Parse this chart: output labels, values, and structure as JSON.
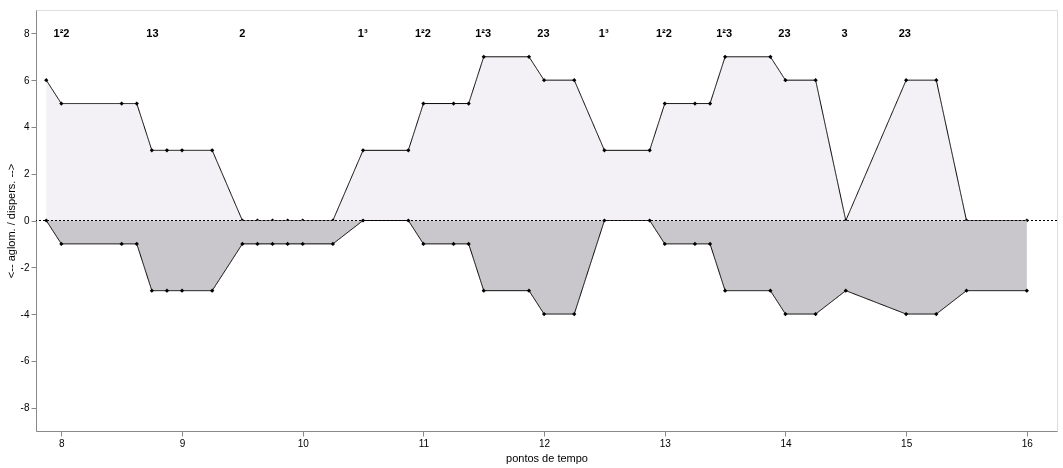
{
  "chart_data": {
    "type": "area",
    "xlabel": "pontos de tempo",
    "ylabel": "<-- aglom. / dispers. -->",
    "x": [
      7.875,
      8,
      8.5,
      8.625,
      8.75,
      8.875,
      9,
      9.25,
      9.5,
      9.625,
      9.75,
      9.875,
      10,
      10.25,
      10.5,
      10.875,
      11,
      11.25,
      11.375,
      11.5,
      11.875,
      12,
      12.25,
      12.5,
      12.875,
      13,
      13.25,
      13.375,
      13.5,
      13.875,
      14,
      14.25,
      14.5,
      15,
      15.25,
      15.5,
      16
    ],
    "series": [
      {
        "color": "#f3f1f5",
        "values": [
          6,
          5,
          5,
          5,
          3,
          3,
          3,
          3,
          0,
          0,
          0,
          0,
          0,
          0,
          3,
          3,
          5,
          5,
          5,
          7,
          7,
          6,
          6,
          3,
          3,
          5,
          5,
          5,
          7,
          7,
          6,
          6,
          0,
          6,
          6,
          0,
          0
        ]
      },
      {
        "color": "#c9c7cb",
        "values": [
          0,
          -1,
          -1,
          -1,
          -3,
          -3,
          -3,
          -3,
          -1,
          -1,
          -1,
          -1,
          -1,
          -1,
          0,
          0,
          -1,
          -1,
          -1,
          -3,
          -3,
          -4,
          -4,
          0,
          0,
          -1,
          -1,
          -1,
          -3,
          -3,
          -4,
          -4,
          -3,
          -4,
          -4,
          -3,
          -3
        ]
      }
    ],
    "xlim": [
      7.79,
      16.25
    ],
    "ylim": [
      -9,
      9
    ],
    "xticks": [
      8,
      9,
      10,
      11,
      12,
      13,
      14,
      15,
      16
    ],
    "yticks": [
      -8,
      -6,
      -4,
      -2,
      0,
      2,
      4,
      6,
      8
    ],
    "ref_lines": [
      {
        "axis": "y",
        "value": 0,
        "color": "#000000",
        "line_style": "dotted"
      }
    ],
    "annotations": [
      "1²2",
      "13",
      "2",
      "1³",
      "1²2",
      "1²3",
      "23",
      "1³",
      "1²2",
      "1²3",
      "23",
      "3",
      "23"
    ],
    "marker": "diamond",
    "line_style": "solid",
    "grid": false
  }
}
